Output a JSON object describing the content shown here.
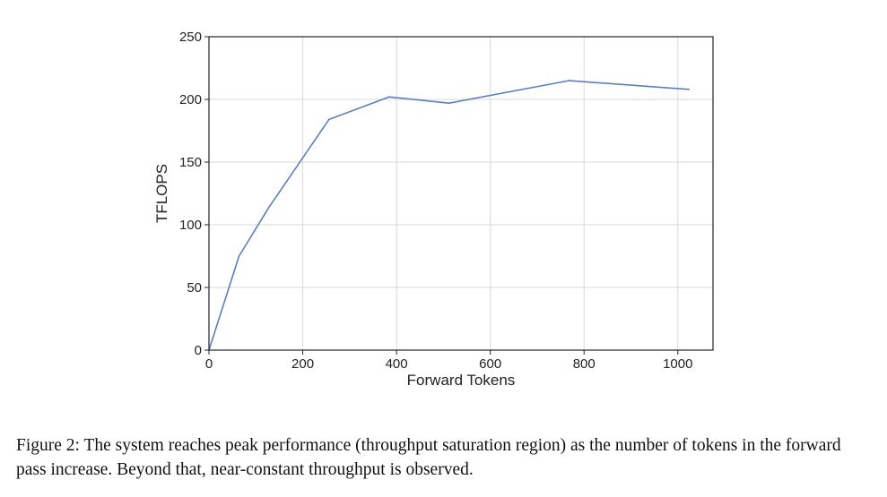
{
  "chart_data": {
    "type": "line",
    "title": "",
    "xlabel": "Forward Tokens",
    "ylabel": "TFLOPS",
    "xlim": [
      0,
      1075
    ],
    "ylim": [
      0,
      250
    ],
    "x_ticks": [
      0,
      200,
      400,
      600,
      800,
      1000
    ],
    "y_ticks": [
      0,
      50,
      100,
      150,
      200,
      250
    ],
    "grid": true,
    "legend": "none",
    "series": [
      {
        "color": "#5b7fbd",
        "x": [
          0,
          64,
          128,
          256,
          384,
          512,
          768,
          1024
        ],
        "y": [
          0,
          75,
          114,
          184,
          202,
          197,
          215,
          208
        ]
      }
    ]
  },
  "caption": "Figure 2: The system reaches peak performance (throughput saturation region) as the number of tokens in the forward pass increase. Beyond that, near-constant throughput is observed."
}
